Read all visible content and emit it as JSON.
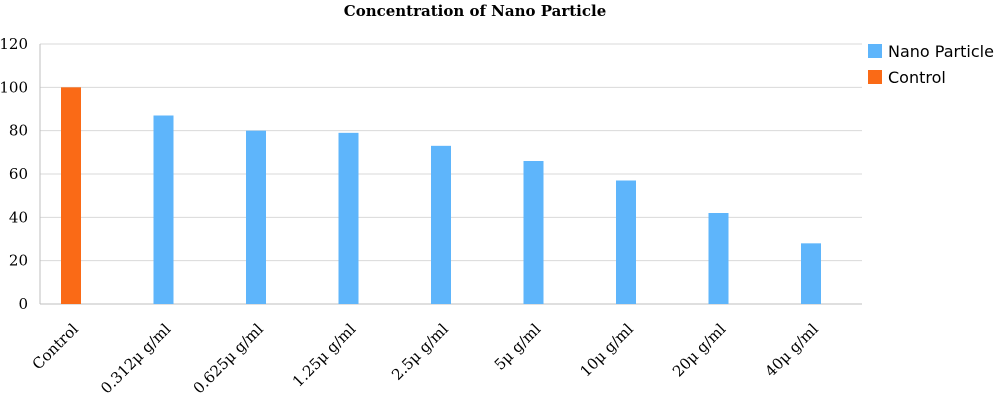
{
  "chart_data": {
    "type": "bar",
    "title": "Concentration of Nano Particle",
    "xlabel": "",
    "ylabel": "",
    "categories": [
      "Control",
      "0.312μ g/ml",
      "0.625μ g/ml",
      "1.25μ g/ml",
      "2.5μ g/ml",
      "5μ g/ml",
      "10μ g/ml",
      "20μ g/ml",
      "40μ g/ml"
    ],
    "series": [
      {
        "name": "Nano Particle",
        "color": "#5EB5FB",
        "values": [
          null,
          87,
          80,
          79,
          73,
          66,
          57,
          42,
          28
        ]
      },
      {
        "name": "Control",
        "color": "#FA6A16",
        "values": [
          100,
          null,
          null,
          null,
          null,
          null,
          null,
          null,
          null
        ]
      }
    ],
    "ylim": [
      0,
      120
    ],
    "yticks": [
      0,
      20,
      40,
      60,
      80,
      100,
      120
    ],
    "grid": true,
    "legend_position": "right-top"
  }
}
